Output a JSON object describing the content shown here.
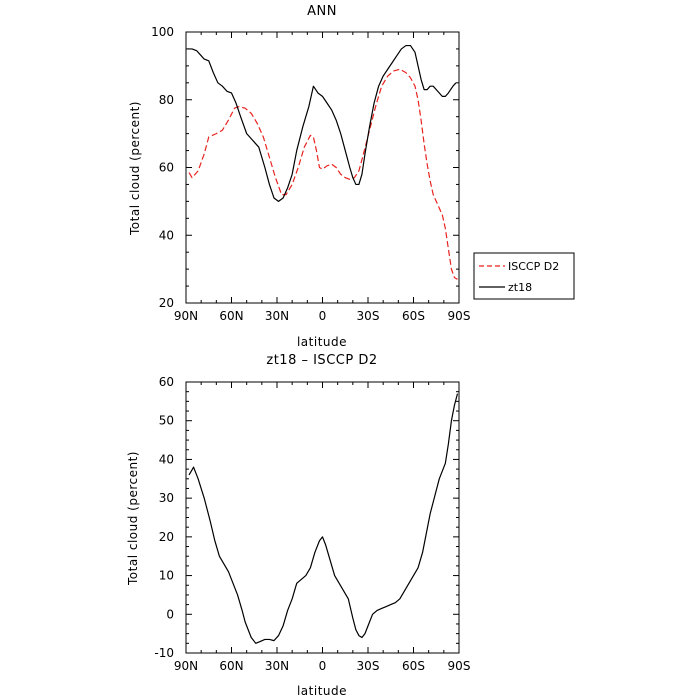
{
  "colors": {
    "isccp": "#e8231f",
    "model": "#000000"
  },
  "chart_data": [
    {
      "type": "line",
      "title": "ANN",
      "xlabel": "latitude",
      "ylabel": "Total cloud (percent)",
      "xlim": [
        -90,
        90
      ],
      "ylim": [
        20,
        100
      ],
      "xticks": [
        -90,
        -60,
        -30,
        0,
        30,
        60,
        90
      ],
      "xtick_labels": [
        "90N",
        "60N",
        "30N",
        "0",
        "30S",
        "60S",
        "90S"
      ],
      "yticks": [
        20,
        40,
        60,
        80,
        100
      ],
      "ytick_labels": [
        "20",
        "40",
        "60",
        "80",
        "100"
      ],
      "legend_position": "right, outside plot",
      "series": [
        {
          "name": "ISCCP D2",
          "style": "dashed",
          "color": "#e8231f",
          "x": [
            -88,
            -86,
            -82,
            -78,
            -75,
            -70,
            -66,
            -62,
            -58,
            -55,
            -51,
            -47,
            -43,
            -39,
            -35,
            -31,
            -27,
            -24,
            -20,
            -16,
            -12,
            -8,
            -6,
            -4,
            -2,
            0,
            3,
            6,
            9,
            12,
            15,
            18,
            21,
            24,
            27,
            31,
            35,
            39,
            43,
            47,
            51,
            55,
            58,
            61,
            63,
            65,
            67,
            69,
            71,
            73,
            75,
            77,
            79,
            81,
            83,
            85,
            87,
            89
          ],
          "y": [
            58.5,
            57,
            59,
            64,
            69,
            70,
            71,
            74,
            77.5,
            78,
            77.5,
            76,
            73,
            69,
            63,
            57,
            52,
            52,
            55,
            60,
            66,
            69.5,
            69,
            65,
            60,
            59.5,
            60.5,
            61,
            60,
            58,
            57,
            56.5,
            57,
            59,
            64,
            71,
            78,
            84,
            87,
            88.5,
            89,
            88,
            86.5,
            84,
            80,
            74,
            67,
            61,
            56,
            52,
            50,
            48,
            46,
            42,
            36,
            30,
            27.5,
            27
          ]
        },
        {
          "name": "zt18",
          "style": "solid",
          "color": "#000000",
          "x": [
            -89,
            -86,
            -83,
            -80,
            -78,
            -75,
            -72,
            -69,
            -66,
            -63,
            -60,
            -57,
            -54,
            -50,
            -46,
            -42,
            -38,
            -35,
            -32,
            -29,
            -26,
            -23,
            -20,
            -17,
            -13,
            -9,
            -6,
            -3,
            0,
            3,
            6,
            9,
            12,
            15,
            18,
            20,
            22,
            24,
            26,
            28,
            31,
            34,
            37,
            40,
            43,
            46,
            49,
            52,
            55,
            58,
            61,
            63,
            65,
            67,
            69,
            71,
            73,
            75,
            77,
            79,
            81,
            83,
            86,
            88
          ],
          "y": [
            95,
            95,
            94.5,
            93,
            92,
            91.5,
            88,
            85,
            84,
            82.5,
            82,
            79,
            75,
            70,
            68,
            66,
            60,
            55,
            51,
            50,
            51,
            54,
            58,
            65,
            72,
            78,
            84,
            82,
            81,
            79,
            77,
            74,
            70,
            65,
            60,
            57,
            55,
            55,
            58,
            64,
            72,
            79,
            84,
            87,
            89,
            91,
            93,
            95,
            96,
            96,
            94,
            90,
            86,
            83,
            83,
            84,
            84,
            83,
            82,
            81,
            81,
            82,
            84,
            85
          ]
        }
      ]
    },
    {
      "type": "line",
      "title": "zt18 – ISCCP D2",
      "xlabel": "latitude",
      "ylabel": "Total cloud (percent)",
      "xlim": [
        -90,
        90
      ],
      "ylim": [
        -10,
        60
      ],
      "xticks": [
        -90,
        -60,
        -30,
        0,
        30,
        60,
        90
      ],
      "xtick_labels": [
        "90N",
        "60N",
        "30N",
        "0",
        "30S",
        "60S",
        "90S"
      ],
      "yticks": [
        -10,
        0,
        10,
        20,
        30,
        40,
        50,
        60
      ],
      "ytick_labels": [
        "-10",
        "0",
        "10",
        "20",
        "30",
        "40",
        "50",
        "60"
      ],
      "series": [
        {
          "style": "solid",
          "color": "#000000",
          "x": [
            -88,
            -85,
            -82,
            -78,
            -74,
            -71,
            -68,
            -65,
            -62,
            -59,
            -56,
            -53,
            -51,
            -49,
            -47,
            -44,
            -41,
            -38,
            -35,
            -32,
            -29,
            -26,
            -23,
            -20,
            -17,
            -14,
            -11,
            -8,
            -5,
            -2,
            0,
            2,
            5,
            8,
            11,
            14,
            17,
            20,
            22,
            24,
            26,
            28,
            30,
            33,
            36,
            39,
            42,
            45,
            48,
            51,
            54,
            57,
            60,
            63,
            66,
            69,
            71,
            73,
            75,
            77,
            79,
            81,
            83,
            85,
            87,
            89
          ],
          "y": [
            36,
            38,
            35,
            30,
            24,
            19,
            15,
            13,
            11,
            8,
            5,
            1,
            -2,
            -4,
            -6,
            -7.5,
            -7,
            -6.5,
            -6.5,
            -6.8,
            -5.5,
            -3,
            1,
            4,
            8,
            9,
            10,
            12,
            16,
            19,
            20,
            18,
            14,
            10,
            8,
            6,
            4,
            -1,
            -4,
            -5.5,
            -6,
            -5,
            -3,
            0,
            1,
            1.5,
            2,
            2.5,
            3,
            4,
            6,
            8,
            10,
            12,
            16,
            22,
            26,
            29,
            32,
            35,
            37,
            39,
            44,
            50,
            54,
            57
          ]
        }
      ]
    }
  ]
}
